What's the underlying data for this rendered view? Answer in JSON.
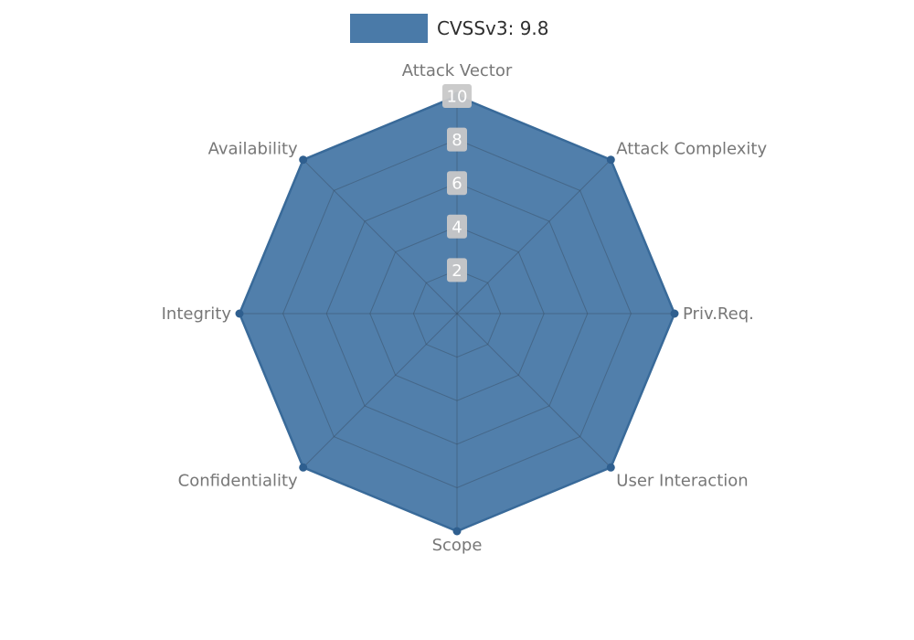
{
  "legend": {
    "label": "CVSSv3: 9.8"
  },
  "chart_data": {
    "type": "radar",
    "title": "CVSSv3: 9.8",
    "categories": [
      "Attack Vector",
      "Attack Complexity",
      "Priv.Req.",
      "User Interaction",
      "Scope",
      "Confidentiality",
      "Integrity",
      "Availability"
    ],
    "series": [
      {
        "name": "CVSSv3: 9.8",
        "values": [
          10,
          10,
          10,
          10,
          10,
          10,
          10,
          10
        ]
      }
    ],
    "rmin": 0,
    "rmax": 10,
    "ticks": [
      2,
      4,
      6,
      8,
      10
    ],
    "grid": true,
    "legend_position": "top",
    "colors": {
      "fill": "#4a7aa8",
      "outline": "#396a99",
      "marker": "#2f5f8f",
      "grid_line": "rgba(55,75,95,0.45)",
      "tick_box": "#c8c8c8",
      "tick_text": "#ffffff",
      "category_label": "#777777"
    }
  }
}
